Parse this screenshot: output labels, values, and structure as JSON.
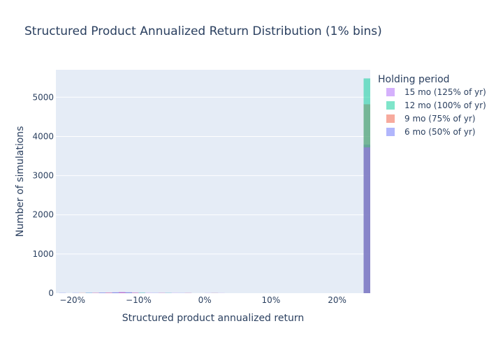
{
  "chart_data": {
    "type": "histogram",
    "title": "Structured Product Annualized Return Distribution (1% bins)",
    "xlabel": "Structured product annualized return",
    "ylabel": "Number of simulations",
    "xlim": [
      -0.225,
      0.25
    ],
    "ylim": [
      0,
      5700
    ],
    "x_tick_values": [
      -0.2,
      -0.1,
      0,
      0.1,
      0.2
    ],
    "x_tick_labels": [
      "−20%",
      "−10%",
      "0%",
      "10%",
      "20%"
    ],
    "y_tick_values": [
      0,
      1000,
      2000,
      3000,
      4000,
      5000
    ],
    "y_tick_labels": [
      "0",
      "1000",
      "2000",
      "3000",
      "4000",
      "5000"
    ],
    "grid": true,
    "bin_width": 0.01,
    "legend": {
      "title": "Holding period",
      "placement": "right",
      "entries": [
        "15 mo (125% of yr)",
        "12 mo (100% of yr)",
        "9 mo (75% of yr)",
        "6 mo (50% of yr)"
      ]
    },
    "series": [
      {
        "name": "6 mo (50% of yr)",
        "color": "#636efa",
        "bins": [
          {
            "x0": -0.22,
            "count": 6
          },
          {
            "x0": -0.2,
            "count": 6
          },
          {
            "x0": -0.18,
            "count": 12
          },
          {
            "x0": -0.16,
            "count": 14
          },
          {
            "x0": -0.14,
            "count": 18
          },
          {
            "x0": -0.13,
            "count": 22
          },
          {
            "x0": -0.12,
            "count": 16
          },
          {
            "x0": -0.1,
            "count": 9
          },
          {
            "x0": -0.08,
            "count": 7
          },
          {
            "x0": -0.06,
            "count": 6
          },
          {
            "x0": -0.04,
            "count": 5
          },
          {
            "x0": 0.01,
            "count": 4
          },
          {
            "x0": 0.24,
            "count": 3790
          }
        ]
      },
      {
        "name": "9 mo (75% of yr)",
        "color": "#ef553b",
        "bins": [
          {
            "x0": -0.19,
            "count": 5
          },
          {
            "x0": -0.17,
            "count": 10
          },
          {
            "x0": -0.15,
            "count": 16
          },
          {
            "x0": -0.13,
            "count": 20
          },
          {
            "x0": -0.11,
            "count": 12
          },
          {
            "x0": -0.07,
            "count": 6
          },
          {
            "x0": -0.03,
            "count": 4
          },
          {
            "x0": 0.01,
            "count": 3
          },
          {
            "x0": 0.24,
            "count": 4820
          }
        ]
      },
      {
        "name": "12 mo (100% of yr)",
        "color": "#00cc96",
        "bins": [
          {
            "x0": -0.18,
            "count": 5
          },
          {
            "x0": -0.16,
            "count": 9
          },
          {
            "x0": -0.14,
            "count": 15
          },
          {
            "x0": -0.12,
            "count": 18
          },
          {
            "x0": -0.1,
            "count": 10
          },
          {
            "x0": -0.06,
            "count": 5
          },
          {
            "x0": 0.24,
            "count": 5480
          }
        ]
      },
      {
        "name": "15 mo (125% of yr)",
        "color": "#ab63fa",
        "bins": [
          {
            "x0": -0.17,
            "count": 8
          },
          {
            "x0": -0.16,
            "count": 12
          },
          {
            "x0": -0.15,
            "count": 14
          },
          {
            "x0": -0.14,
            "count": 22
          },
          {
            "x0": -0.13,
            "count": 28
          },
          {
            "x0": -0.12,
            "count": 24
          },
          {
            "x0": -0.11,
            "count": 14
          },
          {
            "x0": -0.09,
            "count": 8
          },
          {
            "x0": -0.07,
            "count": 7
          },
          {
            "x0": -0.05,
            "count": 6
          },
          {
            "x0": -0.03,
            "count": 5
          },
          {
            "x0": 0.0,
            "count": 4
          },
          {
            "x0": 0.02,
            "count": 3
          },
          {
            "x0": 0.24,
            "count": 3720
          }
        ]
      }
    ]
  }
}
